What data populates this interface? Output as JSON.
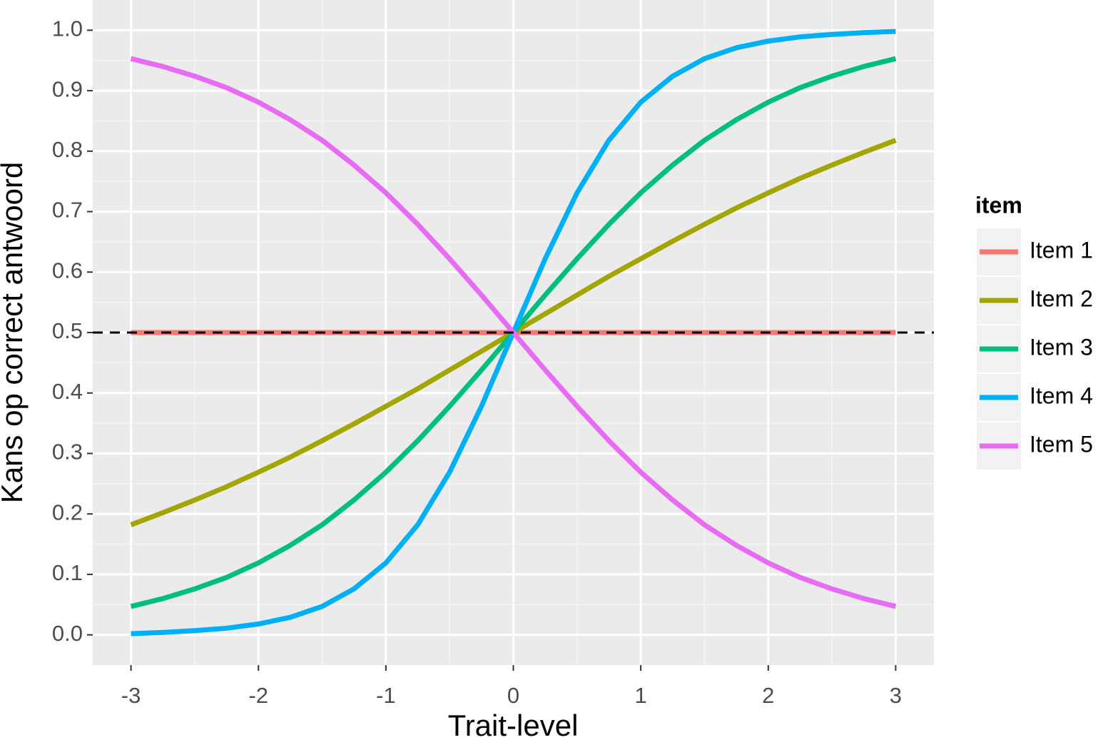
{
  "chart_data": {
    "type": "line",
    "x_label": "Trait-level",
    "y_label": "Kans op correct antwoord",
    "legend_title": "item",
    "x": [
      -3,
      -2.75,
      -2.5,
      -2.25,
      -2,
      -1.75,
      -1.5,
      -1.25,
      -1,
      -0.75,
      -0.5,
      -0.25,
      0,
      0.25,
      0.5,
      0.75,
      1,
      1.25,
      1.5,
      1.75,
      2,
      2.25,
      2.5,
      2.75,
      3
    ],
    "series": [
      {
        "name": "Item 1",
        "color": "#f8766d",
        "values": [
          0.5,
          0.5,
          0.5,
          0.5,
          0.5,
          0.5,
          0.5,
          0.5,
          0.5,
          0.5,
          0.5,
          0.5,
          0.5,
          0.5,
          0.5,
          0.5,
          0.5,
          0.5,
          0.5,
          0.5,
          0.5,
          0.5,
          0.5,
          0.5,
          0.5
        ]
      },
      {
        "name": "Item 2",
        "color": "#a3a500",
        "values": [
          0.182,
          0.202,
          0.223,
          0.245,
          0.269,
          0.294,
          0.321,
          0.349,
          0.378,
          0.407,
          0.438,
          0.469,
          0.5,
          0.531,
          0.562,
          0.593,
          0.622,
          0.651,
          0.679,
          0.706,
          0.731,
          0.755,
          0.777,
          0.798,
          0.818
        ]
      },
      {
        "name": "Item 3",
        "color": "#00bf7d",
        "values": [
          0.047,
          0.06,
          0.076,
          0.095,
          0.119,
          0.148,
          0.182,
          0.223,
          0.269,
          0.321,
          0.378,
          0.438,
          0.5,
          0.562,
          0.622,
          0.679,
          0.731,
          0.777,
          0.818,
          0.852,
          0.881,
          0.905,
          0.924,
          0.94,
          0.953
        ]
      },
      {
        "name": "Item 4",
        "color": "#00b0f6",
        "values": [
          0.002,
          0.004,
          0.007,
          0.011,
          0.018,
          0.029,
          0.047,
          0.076,
          0.119,
          0.182,
          0.269,
          0.378,
          0.5,
          0.622,
          0.731,
          0.818,
          0.881,
          0.924,
          0.953,
          0.971,
          0.982,
          0.989,
          0.993,
          0.996,
          0.998
        ]
      },
      {
        "name": "Item 5",
        "color": "#e76bf3",
        "values": [
          0.953,
          0.94,
          0.924,
          0.905,
          0.881,
          0.852,
          0.818,
          0.777,
          0.731,
          0.679,
          0.622,
          0.562,
          0.5,
          0.438,
          0.378,
          0.321,
          0.269,
          0.223,
          0.182,
          0.148,
          0.119,
          0.095,
          0.076,
          0.06,
          0.047
        ]
      }
    ],
    "reference_line": 0.5,
    "xlim": [
      -3.3,
      3.3
    ],
    "ylim": [
      -0.05,
      1.05
    ],
    "xticks": [
      -3,
      -2,
      -1,
      0,
      1,
      2,
      3
    ],
    "yticks": [
      {
        "value": 0,
        "label": "0.0"
      },
      0.1,
      0.2,
      0.3,
      0.4,
      0.5,
      0.6,
      0.7,
      0.8,
      0.9,
      {
        "value": 1,
        "label": "1.0"
      }
    ],
    "grid": true
  }
}
